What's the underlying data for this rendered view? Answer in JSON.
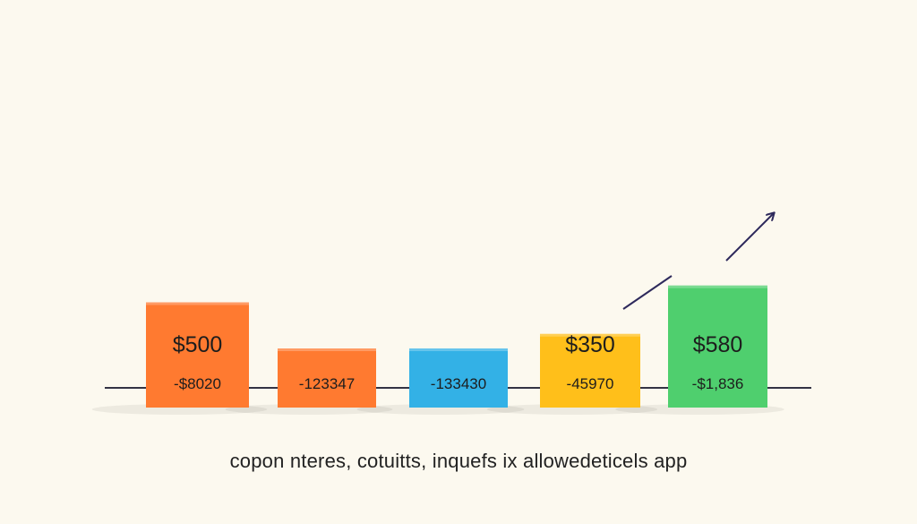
{
  "caption": "copon nteres, cotuitts, inquefs ix allowedeticels app",
  "chart_data": {
    "type": "bar",
    "categories": [
      "",
      "",
      "",
      "",
      ""
    ],
    "values": [
      500,
      0,
      0,
      350,
      580
    ],
    "value_labels": [
      "$500",
      "",
      "",
      "$350",
      "$580"
    ],
    "secondary_labels": [
      "-$8020",
      "-123347",
      "-133430",
      "-45970",
      "-$1,836"
    ],
    "colors": [
      "#ff7a30",
      "#ff7a30",
      "#33b1e6",
      "#ffbf1a",
      "#4fcf6e"
    ],
    "trend_arrow_color": "#2e2a5c",
    "baseline_color": "#333344",
    "title": "",
    "xlabel": "",
    "ylabel": "",
    "grid": false,
    "legend": "none"
  }
}
